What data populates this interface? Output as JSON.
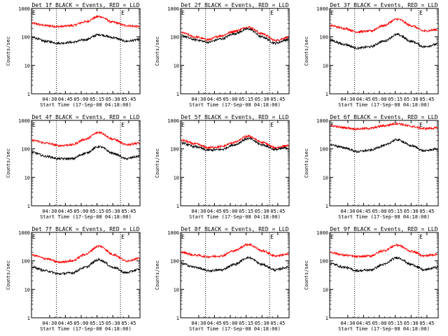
{
  "figure": {
    "type": "line",
    "y_axis": {
      "label": "Counts/sec",
      "scale": "log",
      "ylim": [
        1,
        1000
      ],
      "ticks": [
        "1",
        "10",
        "100",
        "1000"
      ]
    },
    "x_axis": {
      "label": "Start Time (17-Sep-08 04:18:00)",
      "ticks": [
        "04:30",
        "04:45",
        "05:00",
        "05:15",
        "05:30",
        "05:45"
      ]
    },
    "marker_label": "E",
    "colors": {
      "events": "#000000",
      "lld": "#ff0000",
      "axes": "#000000"
    }
  },
  "chart_data": [
    {
      "title": "Det 1f BLACK = Events, RED = LLD",
      "type": "line",
      "series": [
        {
          "name": "LLD",
          "color": "#ff0000",
          "values": [
            300,
            250,
            230,
            250,
            340,
            520,
            330,
            250,
            230
          ]
        },
        {
          "name": "Events",
          "color": "#000000",
          "values": [
            95,
            70,
            60,
            65,
            80,
            120,
            95,
            70,
            80
          ]
        }
      ]
    },
    {
      "title": "Det 2f BLACK = Events, RED = LLD",
      "type": "line",
      "series": [
        {
          "name": "LLD",
          "color": "#ff0000",
          "values": [
            140,
            100,
            80,
            110,
            160,
            220,
            130,
            75,
            95
          ]
        },
        {
          "name": "Events",
          "color": "#000000",
          "values": [
            110,
            80,
            65,
            85,
            130,
            190,
            100,
            60,
            80
          ]
        }
      ]
    },
    {
      "title": "Det 3f BLACK = Events, RED = LLD",
      "type": "line",
      "series": [
        {
          "name": "LLD",
          "color": "#ff0000",
          "values": [
            250,
            200,
            150,
            160,
            250,
            420,
            250,
            160,
            180
          ]
        },
        {
          "name": "Events",
          "color": "#000000",
          "values": [
            75,
            55,
            40,
            45,
            70,
            120,
            70,
            45,
            55
          ]
        }
      ]
    },
    {
      "title": "Det 4f BLACK = Events, RED = LLD",
      "type": "line",
      "series": [
        {
          "name": "LLD",
          "color": "#ff0000",
          "values": [
            200,
            160,
            130,
            140,
            220,
            380,
            220,
            140,
            160
          ]
        },
        {
          "name": "Events",
          "color": "#000000",
          "values": [
            75,
            55,
            45,
            45,
            70,
            120,
            70,
            45,
            55
          ]
        }
      ]
    },
    {
      "title": "Det 5f BLACK = Events, RED = LLD",
      "type": "line",
      "series": [
        {
          "name": "LLD",
          "color": "#ff0000",
          "values": [
            200,
            150,
            110,
            120,
            170,
            280,
            170,
            110,
            130
          ]
        },
        {
          "name": "Events",
          "color": "#000000",
          "values": [
            160,
            120,
            90,
            95,
            140,
            230,
            140,
            95,
            110
          ]
        }
      ]
    },
    {
      "title": "Det 6f BLACK = Events, RED = LLD",
      "type": "line",
      "series": [
        {
          "name": "LLD",
          "color": "#ff0000",
          "values": [
            650,
            560,
            500,
            530,
            650,
            780,
            620,
            520,
            540
          ]
        },
        {
          "name": "Events",
          "color": "#000000",
          "values": [
            140,
            110,
            80,
            90,
            130,
            210,
            130,
            85,
            100
          ]
        }
      ]
    },
    {
      "title": "Det 7f BLACK = Events, RED = LLD",
      "type": "line",
      "series": [
        {
          "name": "LLD",
          "color": "#ff0000",
          "values": [
            160,
            120,
            90,
            100,
            170,
            330,
            170,
            100,
            120
          ]
        },
        {
          "name": "Events",
          "color": "#000000",
          "values": [
            60,
            45,
            35,
            38,
            60,
            110,
            60,
            38,
            50
          ]
        }
      ]
    },
    {
      "title": "Det 8f BLACK = Events, RED = LLD",
      "type": "line",
      "series": [
        {
          "name": "LLD",
          "color": "#ff0000",
          "values": [
            200,
            160,
            140,
            150,
            230,
            380,
            230,
            150,
            170
          ]
        },
        {
          "name": "Events",
          "color": "#000000",
          "values": [
            80,
            60,
            45,
            48,
            75,
            130,
            75,
            48,
            60
          ]
        }
      ]
    },
    {
      "title": "Det 9f BLACK = Events, RED = LLD",
      "type": "line",
      "series": [
        {
          "name": "LLD",
          "color": "#ff0000",
          "values": [
            200,
            160,
            140,
            150,
            230,
            360,
            220,
            150,
            170
          ]
        },
        {
          "name": "Events",
          "color": "#000000",
          "values": [
            80,
            60,
            45,
            48,
            75,
            130,
            75,
            48,
            60
          ]
        }
      ]
    }
  ]
}
